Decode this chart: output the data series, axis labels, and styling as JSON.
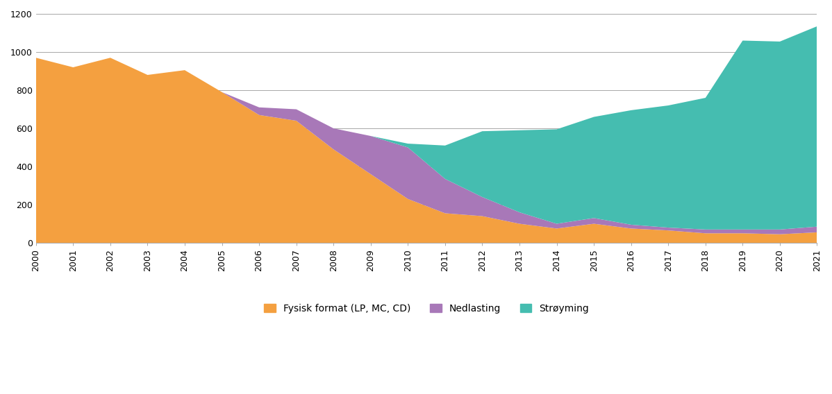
{
  "years": [
    2000,
    2001,
    2002,
    2003,
    2004,
    2005,
    2006,
    2007,
    2008,
    2009,
    2010,
    2011,
    2012,
    2013,
    2014,
    2015,
    2016,
    2017,
    2018,
    2019,
    2020,
    2021
  ],
  "fysisk": [
    970,
    920,
    970,
    880,
    905,
    790,
    670,
    640,
    490,
    360,
    230,
    155,
    140,
    100,
    75,
    100,
    75,
    65,
    50,
    50,
    45,
    55
  ],
  "nedlasting": [
    0,
    0,
    0,
    0,
    0,
    0,
    40,
    60,
    110,
    200,
    270,
    180,
    100,
    60,
    25,
    30,
    20,
    15,
    20,
    20,
    25,
    30
  ],
  "stroeyming": [
    0,
    0,
    0,
    0,
    0,
    0,
    0,
    0,
    0,
    0,
    20,
    175,
    345,
    430,
    495,
    530,
    600,
    640,
    690,
    990,
    985,
    1050
  ],
  "color_fysisk": "#f4a040",
  "color_nedlasting": "#a878b8",
  "color_stroeyming": "#45bdb0",
  "legend_labels": [
    "Fysisk format (LP, MC, CD)",
    "Nedlasting",
    "Strøyming"
  ],
  "ylim": [
    0,
    1200
  ],
  "yticks": [
    0,
    200,
    400,
    600,
    800,
    1000,
    1200
  ],
  "figsize": [
    11.98,
    5.68
  ],
  "dpi": 100
}
